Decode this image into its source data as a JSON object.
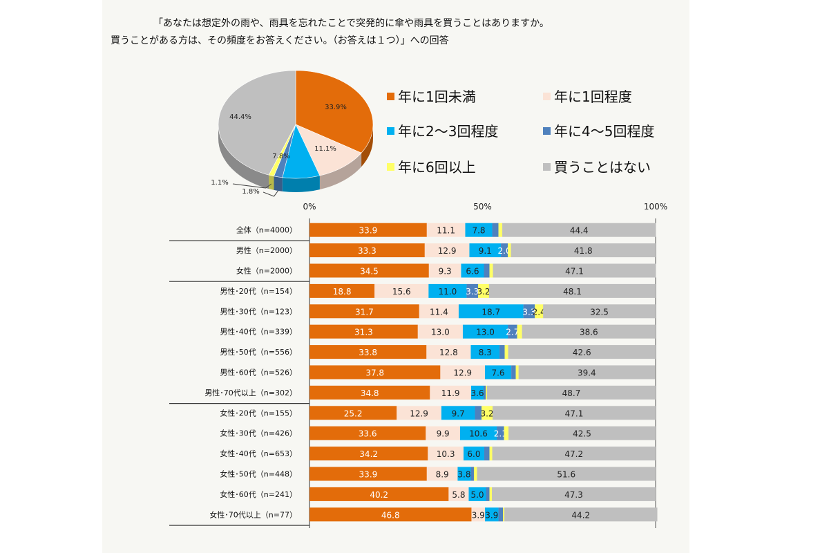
{
  "question": {
    "line1": "「あなたは想定外の雨や、雨具を忘れたことで突発的に傘や雨具を買うことはありますか。",
    "line2": "買うことがある方は、その頻度をお答えください。（お答えは１つ）」への回答"
  },
  "legend": [
    {
      "label": "年に1回未満",
      "color": "#e36c0a"
    },
    {
      "label": "年に1回程度",
      "color": "#fbe3d6"
    },
    {
      "label": "年に2～3回程度",
      "color": "#00b0f0"
    },
    {
      "label": "年に4～5回程度",
      "color": "#4f81bd"
    },
    {
      "label": "年に6回以上",
      "color": "#ffff66"
    },
    {
      "label": "買うことはない",
      "color": "#bfbfbf"
    }
  ],
  "chart_data": [
    {
      "type": "pie",
      "labels": [
        "年に1回未満",
        "年に1回程度",
        "年に2～3回程度",
        "年に4～5回程度",
        "年に6回以上",
        "買うことはない"
      ],
      "values": [
        33.9,
        11.1,
        7.8,
        1.8,
        1.1,
        44.4
      ],
      "value_labels": [
        "33.9%",
        "11.1%",
        "7.8%",
        "1.8%",
        "1.1%",
        "44.4%"
      ]
    },
    {
      "type": "bar",
      "orientation": "horizontal",
      "stacked": true,
      "xlim": [
        0,
        100
      ],
      "x_ticks": [
        "0%",
        "50%",
        "100%"
      ],
      "categories": [
        "全体（n=4000）",
        "男性（n=2000）",
        "女性（n=2000）",
        "男性･20代（n=154）",
        "男性･30代（n=123）",
        "男性･40代（n=339）",
        "男性･50代（n=556）",
        "男性･60代（n=526）",
        "男性･70代以上（n=302）",
        "女性･20代（n=155）",
        "女性･30代（n=426）",
        "女性･40代（n=653）",
        "女性･50代（n=448）",
        "女性･60代（n=241）",
        "女性･70代以上（n=77）"
      ],
      "series": [
        {
          "name": "年に1回未満",
          "values": [
            33.9,
            33.3,
            34.5,
            18.8,
            31.7,
            31.3,
            33.8,
            37.8,
            34.8,
            25.2,
            33.6,
            34.2,
            33.9,
            40.2,
            46.8
          ]
        },
        {
          "name": "年に1回程度",
          "values": [
            11.1,
            12.9,
            9.3,
            15.6,
            11.4,
            13.0,
            12.8,
            12.9,
            11.9,
            12.9,
            9.9,
            10.3,
            8.9,
            5.8,
            3.9
          ]
        },
        {
          "name": "年に2～3回程度",
          "values": [
            7.8,
            9.1,
            6.6,
            11.0,
            18.7,
            13.0,
            8.3,
            7.6,
            3.6,
            9.7,
            10.6,
            6.0,
            3.8,
            5.0,
            3.9
          ]
        },
        {
          "name": "年に4～5回程度",
          "values": [
            1.8,
            2.0,
            1.6,
            3.3,
            3.3,
            2.7,
            1.5,
            1.3,
            0.6,
            1.9,
            2.1,
            1.5,
            0.9,
            1.0,
            1.3
          ]
        },
        {
          "name": "年に6回以上",
          "values": [
            1.1,
            0.9,
            1.0,
            3.2,
            2.4,
            1.4,
            1.0,
            0.8,
            0.4,
            3.2,
            1.3,
            0.8,
            0.9,
            0.7,
            0.4
          ]
        },
        {
          "name": "買うことはない",
          "values": [
            44.4,
            41.8,
            47.1,
            48.1,
            32.5,
            38.6,
            42.6,
            39.4,
            48.7,
            47.1,
            42.5,
            47.2,
            51.6,
            47.3,
            44.2
          ]
        }
      ],
      "data_labels": [
        [
          "33.9",
          "11.1",
          "7.8",
          "",
          "",
          "44.4"
        ],
        [
          "33.3",
          "12.9",
          "9.1",
          "2.0",
          "",
          "41.8"
        ],
        [
          "34.5",
          "9.3",
          "6.6",
          "",
          "",
          "47.1"
        ],
        [
          "18.8",
          "15.6",
          "11.0",
          "3.3",
          "3.2",
          "48.1"
        ],
        [
          "31.7",
          "11.4",
          "18.7",
          "3.3",
          "2.4",
          "32.5"
        ],
        [
          "31.3",
          "13.0",
          "13.0",
          "2.7",
          "",
          "38.6"
        ],
        [
          "33.8",
          "12.8",
          "8.3",
          "",
          "",
          "42.6"
        ],
        [
          "37.8",
          "12.9",
          "7.6",
          "",
          "",
          "39.4"
        ],
        [
          "34.8",
          "11.9",
          "3.6",
          "",
          "",
          "48.7"
        ],
        [
          "25.2",
          "12.9",
          "9.7",
          "",
          "3.2",
          "47.1"
        ],
        [
          "33.6",
          "9.9",
          "10.6",
          "2.1",
          "",
          "42.5"
        ],
        [
          "34.2",
          "10.3",
          "6.0",
          "",
          "",
          "47.2"
        ],
        [
          "33.9",
          "8.9",
          "3.8",
          "",
          "",
          "51.6"
        ],
        [
          "40.2",
          "5.8",
          "5.0",
          "",
          "",
          "47.3"
        ],
        [
          "46.8",
          "3.9",
          "3.9",
          "",
          "",
          "44.2"
        ]
      ]
    }
  ]
}
